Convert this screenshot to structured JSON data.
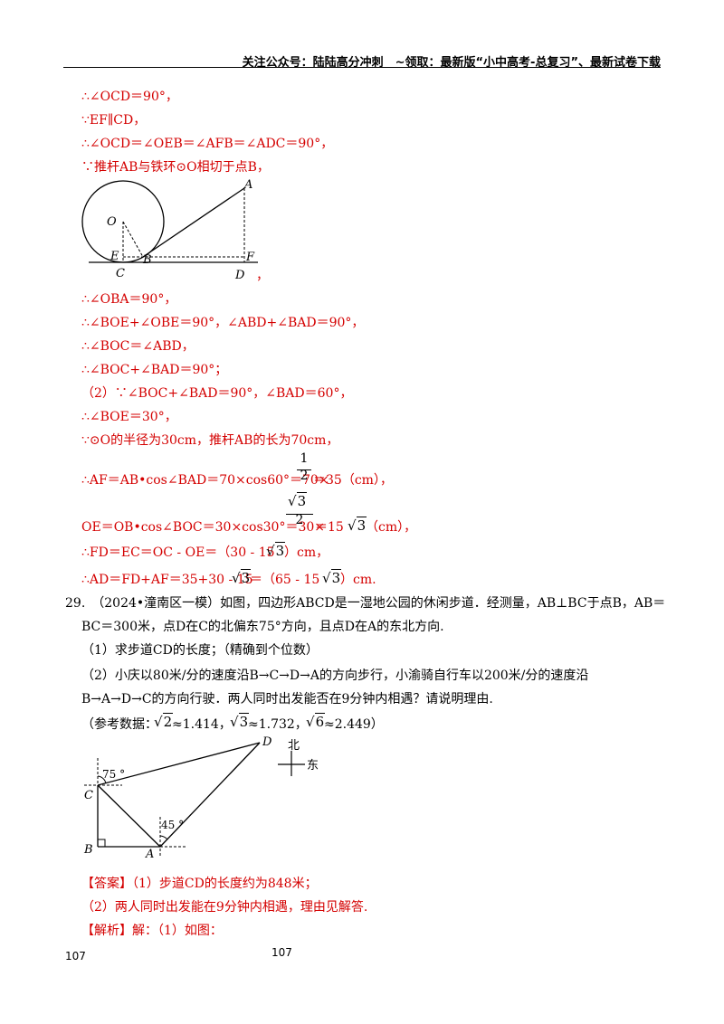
{
  "header": {
    "text": "关注公众号：陆陆高分冲刺　~领取：最新版“小中高考-总复习”、最新试卷下载"
  },
  "solution_top": [
    "∴∠OCD＝90°，",
    "∵EF∥CD，",
    "∴∠OCD＝∠OEB＝∠AFB＝∠ADC＝90°，",
    "∵推杆AB与铁环⊙O相切于点B，"
  ],
  "figure1": {
    "labels": {
      "A": "A",
      "O": "O",
      "E": "E",
      "B": "B",
      "F": "F",
      "C": "C",
      "D": "D"
    },
    "trailing_comma": "，"
  },
  "solution_mid": [
    "∴∠OBA＝90°，",
    "∴∠BOE+∠OBE＝90°，∠ABD+∠BAD＝90°，",
    "∴∠BOC＝∠ABD，",
    "∴∠BOC+∠BAD＝90°；",
    "（2）∵∠BOC+∠BAD＝90°，∠BAD＝60°，",
    "∴∠BOE＝30°，",
    "∵⊙O的半径为30cm，推杆AB的长为70cm，"
  ],
  "af_line": {
    "before": "∴AF＝AB•cos∠BAD＝70×cos60°＝70×",
    "num": "1",
    "den": "2",
    "after": "＝35（cm），"
  },
  "oe_line": {
    "before": "OE＝OB•cos∠BOC＝30×cos30°＝30×",
    "num_radicand": "3",
    "den": "2",
    "mid": "＝15",
    "radicand": "3",
    "after": "（cm），"
  },
  "fd_line": {
    "before": "∴FD＝EC＝OC - OE＝（30 - 15",
    "radicand": "3",
    "after": "）cm，"
  },
  "ad_line": {
    "before": "∴AD＝FD+AF＝35+30 - 15",
    "radicand": "3",
    "mid": "＝（65 - 15",
    "radicand2": "3",
    "after": "）cm."
  },
  "problem29": {
    "line1": "29.　（2024•潼南区一模）如图，四边形ABCD是一湿地公园的休闲步道．经测量，AB⊥BC于点B，AB＝",
    "line2": "BC＝300米，点D在C的北偏东75°方向，且点D在A的东北方向.",
    "q1": "（1）求步道CD的长度；（精确到个位数）",
    "q2a": "（2）小庆以80米/分的速度沿B→C→D→A的方向步行，小渝骑自行车以200米/分的速度沿",
    "q2b": "B→A→D→C的方向行驶．两人同时出发能否在9分钟内相遇？请说明理由.",
    "ref_prefix": "（参考数据：",
    "ref_items": [
      {
        "radicand": "2",
        "approx": "≈1.414，"
      },
      {
        "radicand": "3",
        "approx": "≈1.732，"
      },
      {
        "radicand": "6",
        "approx": "≈2.449）"
      }
    ]
  },
  "figure2": {
    "labels": {
      "D": "D",
      "C": "C",
      "B": "B",
      "A": "A"
    },
    "angle_c": "75 °",
    "angle_a": "45 °",
    "north": "北",
    "east": "东"
  },
  "answer": {
    "line1": "【答案】（1）步道CD的长度约为848米；",
    "line2": "（2）两人同时出发能在9分钟内相遇，理由见解答.",
    "line3": "【解析】解：（1）如图："
  },
  "page_numbers": {
    "left": "107",
    "center": "107"
  }
}
